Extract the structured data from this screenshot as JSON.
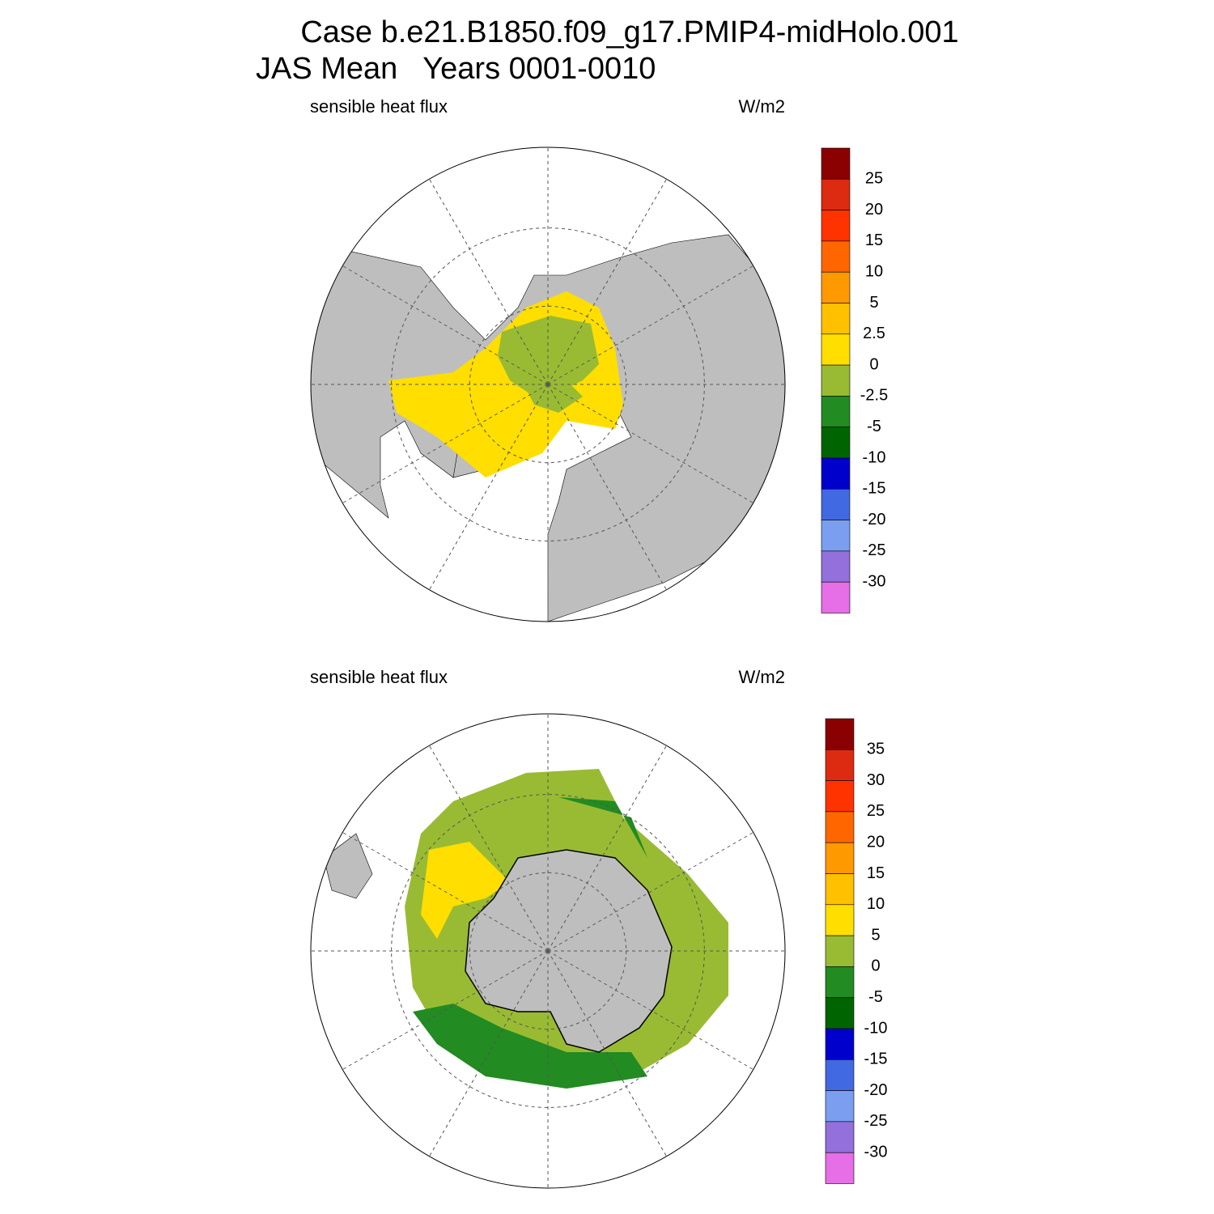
{
  "header": {
    "title": "Case b.e21.B1850.f09_g17.PMIP4-midHolo.001",
    "subtitle": "JAS Mean   Years 0001-0010"
  },
  "panels": [
    {
      "label": "sensible heat flux",
      "units": "W/m2",
      "colorbar": {
        "labels": [
          "25",
          "20",
          "15",
          "10",
          "5",
          "2.5",
          "0",
          "-2.5",
          "-5",
          "-10",
          "-15",
          "-20",
          "-25",
          "-30"
        ],
        "colors": [
          "#8b0000",
          "#dc2b10",
          "#ff3300",
          "#ff6600",
          "#ff9900",
          "#ffc000",
          "#ffde00",
          "#99bb33",
          "#228b22",
          "#006400",
          "#0000cd",
          "#4169e1",
          "#7b9ef0",
          "#9370db",
          "#e66ee6"
        ]
      }
    },
    {
      "label": "sensible heat flux",
      "units": "W/m2",
      "colorbar": {
        "labels": [
          "35",
          "30",
          "25",
          "20",
          "15",
          "10",
          "5",
          "0",
          "-5",
          "-10",
          "-15",
          "-20",
          "-25",
          "-30"
        ],
        "colors": [
          "#8b0000",
          "#dc2b10",
          "#ff3300",
          "#ff6600",
          "#ff9900",
          "#ffc000",
          "#ffde00",
          "#99bb33",
          "#228b22",
          "#006400",
          "#0000cd",
          "#4169e1",
          "#7b9ef0",
          "#9370db",
          "#e66ee6"
        ]
      }
    }
  ]
}
